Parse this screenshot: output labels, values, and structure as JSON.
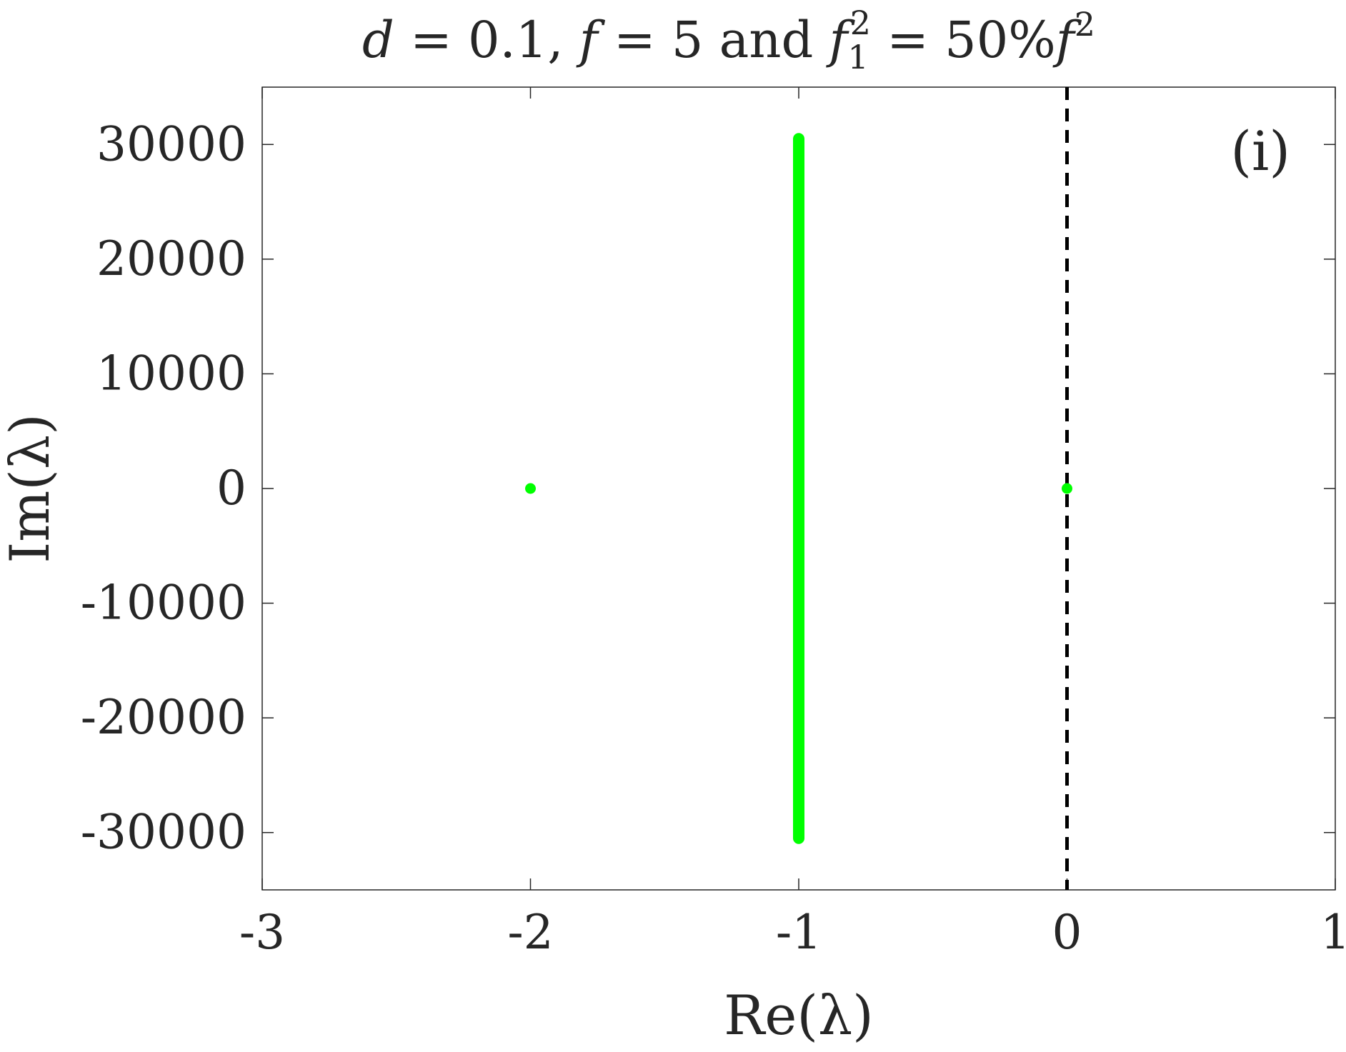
{
  "chart_data": {
    "type": "scatter",
    "title": {
      "var_d": "d",
      "val_d": " = 0.1, ",
      "var_f": "f",
      "val_f": " = 5 and ",
      "var_f1": "f",
      "sub_1": "1",
      "sup_2": "2",
      "eq": " = 50%",
      "var_f2": "f",
      "sup_2b": "2"
    },
    "xlabel": "Re(λ)",
    "ylabel": "Im(λ)",
    "annotation": "(i)",
    "xlim": [
      -3,
      1
    ],
    "ylim": [
      -35000,
      35000
    ],
    "xticks": [
      -3,
      -2,
      -1,
      0,
      1
    ],
    "xtick_labels": [
      "-3",
      "-2",
      "-1",
      "0",
      "1"
    ],
    "yticks": [
      -30000,
      -20000,
      -10000,
      0,
      10000,
      20000,
      30000
    ],
    "ytick_labels": [
      "-30000",
      "-20000",
      "-10000",
      "0",
      "10000",
      "20000",
      "30000"
    ],
    "grid": false,
    "reference_line": {
      "x": 0,
      "style": "dashed",
      "color": "#000000"
    },
    "series": [
      {
        "color": "#00ff00",
        "points": [
          {
            "x": -2,
            "y": 0
          },
          {
            "x": 0,
            "y": 0
          }
        ],
        "vertical_band": {
          "x": -1,
          "y_min": -30500,
          "y_max": 30500
        }
      }
    ]
  }
}
